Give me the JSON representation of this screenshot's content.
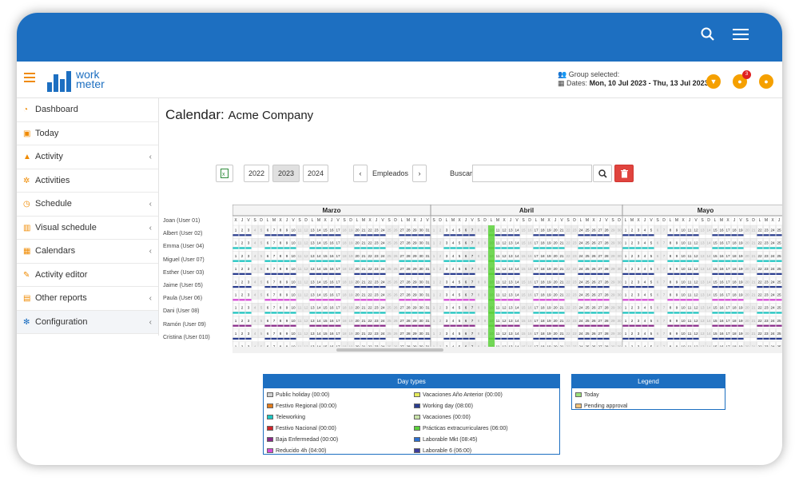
{
  "header": {
    "logo_text_1": "work",
    "logo_text_2": "meter",
    "group_label": "Group selected:",
    "dates_label": "Dates:",
    "dates_value": "Mon, 10 Jul 2023 - Thu, 13 Jul 2023",
    "notif_count": "3"
  },
  "sidebar": {
    "items": [
      {
        "label": "Dashboard",
        "icon": "dashboard-icon",
        "chev": false
      },
      {
        "label": "Today",
        "icon": "calendar-check-icon",
        "chev": false
      },
      {
        "label": "Activity",
        "icon": "area-chart-icon",
        "chev": true
      },
      {
        "label": "Activities",
        "icon": "gears-icon",
        "chev": false
      },
      {
        "label": "Schedule",
        "icon": "clock-icon",
        "chev": true
      },
      {
        "label": "Visual schedule",
        "icon": "bar-chart-icon",
        "chev": true
      },
      {
        "label": "Calendars",
        "icon": "calendar-icon",
        "chev": true
      },
      {
        "label": "Activity editor",
        "icon": "edit-icon",
        "chev": false
      },
      {
        "label": "Other reports",
        "icon": "table-icon",
        "chev": true
      },
      {
        "label": "Configuration",
        "icon": "gear-icon",
        "chev": true
      }
    ]
  },
  "page": {
    "title_main": "Calendar:",
    "title_company": "Acme Company",
    "years": [
      "2022",
      "2023",
      "2024"
    ],
    "selected_year": "2023",
    "empleados_label": "Empleados",
    "buscar_label": "Buscar",
    "search_value": ""
  },
  "calendar": {
    "months": [
      {
        "name": "Marzo",
        "start_day": 1,
        "start_dow": 2,
        "days": 31
      },
      {
        "name": "Abril",
        "start_day": 1,
        "start_dow": 5,
        "days": 30
      },
      {
        "name": "Mayo",
        "start_day": 1,
        "start_dow": 0,
        "days": 26
      }
    ],
    "weekday_letters": [
      "L",
      "M",
      "X",
      "J",
      "V",
      "S",
      "D"
    ],
    "employees": [
      "Joan (User 01)",
      "Albert (User 02)",
      "Emma (User 04)",
      "Miguel (User 07)",
      "Esther (User 03)",
      "Jaime (User 05)",
      "Paula (User 06)",
      "Dani (User 08)",
      "Ramón (User 09)",
      "Cristina (User 010)"
    ]
  },
  "day_types": {
    "title": "Day types",
    "items": [
      {
        "label": "Public holiday (00:00)",
        "color": "#cfcfcf"
      },
      {
        "label": "Vacaciones Año Anterior (00:00)",
        "color": "#e4ea5a"
      },
      {
        "label": "Festivo Regional (00:00)",
        "color": "#e07a1c"
      },
      {
        "label": "Working day (08:00)",
        "color": "#2a3d8f"
      },
      {
        "label": "Teleworking",
        "color": "#1cc6c2"
      },
      {
        "label": "Vacaciones (00:00)",
        "color": "#c8e2a8"
      },
      {
        "label": "Festivo Nacional (00:00)",
        "color": "#d0252b"
      },
      {
        "label": "Prácticas extracurriculares (06:00)",
        "color": "#5bd13a"
      },
      {
        "label": "Baja Enfermedad (00:00)",
        "color": "#8a2a8a"
      },
      {
        "label": "Laborable Mkt (08:45)",
        "color": "#2c6fd1"
      },
      {
        "label": "Reducido 4h (04:00)",
        "color": "#d64ad6"
      },
      {
        "label": "Laborable 6 (06:00)",
        "color": "#3c3c9c"
      }
    ]
  },
  "legend": {
    "title": "Legend",
    "items": [
      {
        "label": "Today",
        "color": "#9be07a"
      },
      {
        "label": "Pending approval",
        "color": "#f2c27a"
      }
    ]
  }
}
